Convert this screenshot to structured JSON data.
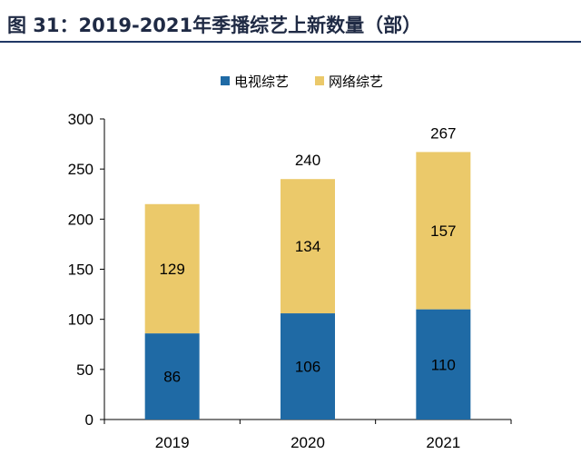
{
  "title": "图 31：2019-2021年季播综艺上新数量（部）",
  "chart_data": {
    "type": "bar",
    "stacked": true,
    "categories": [
      "2019",
      "2020",
      "2021"
    ],
    "series": [
      {
        "name": "电视综艺",
        "color": "#1f6aa5",
        "values": [
          86,
          106,
          110
        ],
        "label_color": "#000000"
      },
      {
        "name": "网络综艺",
        "color": "#ebc96a",
        "values": [
          129,
          134,
          157
        ],
        "label_color": "#000000"
      }
    ],
    "totals": [
      null,
      240,
      267
    ],
    "total_labels": [
      "",
      "240",
      "267"
    ],
    "ylim": [
      0,
      300
    ],
    "yticks": [
      0,
      50,
      100,
      150,
      200,
      250,
      300
    ],
    "legend_position": "top-center",
    "grid": false
  }
}
